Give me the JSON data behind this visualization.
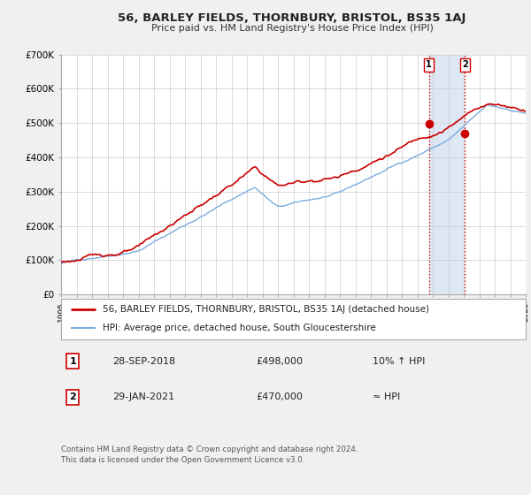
{
  "title": "56, BARLEY FIELDS, THORNBURY, BRISTOL, BS35 1AJ",
  "subtitle": "Price paid vs. HM Land Registry's House Price Index (HPI)",
  "legend_line1": "56, BARLEY FIELDS, THORNBURY, BRISTOL, BS35 1AJ (detached house)",
  "legend_line2": "HPI: Average price, detached house, South Gloucestershire",
  "annotation1_label": "1",
  "annotation1_date": "28-SEP-2018",
  "annotation1_price": "£498,000",
  "annotation1_note": "10% ↑ HPI",
  "annotation2_label": "2",
  "annotation2_date": "29-JAN-2021",
  "annotation2_price": "£470,000",
  "annotation2_note": "≈ HPI",
  "footer": "Contains HM Land Registry data © Crown copyright and database right 2024.\nThis data is licensed under the Open Government Licence v3.0.",
  "red_color": "#cc0000",
  "blue_color": "#7aace0",
  "marker1_x": 2018.75,
  "marker1_y": 498000,
  "marker2_x": 2021.08,
  "marker2_y": 470000,
  "vline1_x": 2018.75,
  "vline2_x": 2021.08,
  "ylim": [
    0,
    700000
  ],
  "xlim": [
    1995,
    2025
  ],
  "background_color": "#f0f0f0",
  "plot_bg": "#ffffff",
  "shaded_region_color": "#c8d8ee"
}
